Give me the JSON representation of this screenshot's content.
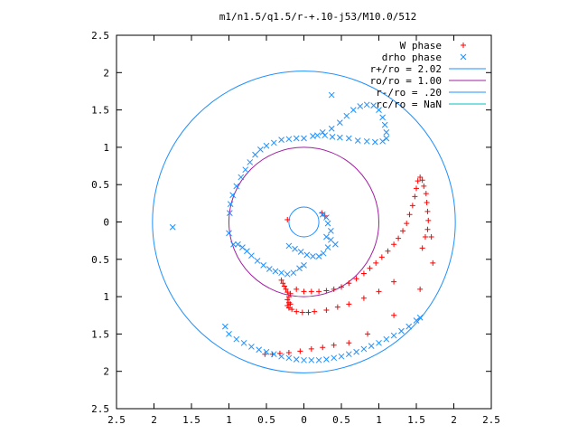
{
  "chart_data": {
    "type": "scatter",
    "title": "m1/n1.5/q1.5/r-+.10-j53/M10.0/512",
    "xlabel": "",
    "ylabel": "",
    "xlim": [
      -2.5,
      2.5
    ],
    "ylim": [
      -2.5,
      2.5
    ],
    "x_tick_labels": [
      "2.5",
      "2",
      "1.5",
      "1",
      "0.5",
      "0",
      "0.5",
      "1",
      "1.5",
      "2",
      "2.5"
    ],
    "x_tick_values": [
      -2.5,
      -2,
      -1.5,
      -1,
      -0.5,
      0,
      0.5,
      1,
      1.5,
      2,
      2.5
    ],
    "y_tick_labels": [
      "2.5",
      "2",
      "1.5",
      "1",
      "0.5",
      "0",
      "0.5",
      "1",
      "1.5",
      "2",
      "2.5"
    ],
    "y_tick_values": [
      2.5,
      2,
      1.5,
      1,
      0.5,
      0,
      -0.5,
      -1,
      -1.5,
      -2,
      -2.5
    ],
    "grid": false,
    "legend_position": "top-right",
    "series": [
      {
        "name": "W phase",
        "marker": "plus",
        "color": "#ff0000",
        "points": [
          [
            -0.22,
            0.03
          ],
          [
            0.24,
            0.12
          ],
          [
            0.28,
            0.08
          ],
          [
            -0.3,
            -0.78
          ],
          [
            -0.28,
            -0.82
          ],
          [
            -0.26,
            -0.86
          ],
          [
            -0.24,
            -0.9
          ],
          [
            -0.22,
            -0.94
          ],
          [
            -0.18,
            -0.96
          ],
          [
            -0.2,
            -1.0
          ],
          [
            -0.22,
            -1.04
          ],
          [
            -0.2,
            -1.08
          ],
          [
            -0.18,
            -1.1
          ],
          [
            -0.22,
            -1.12
          ],
          [
            -0.2,
            -1.15
          ],
          [
            -0.16,
            -1.17
          ],
          [
            -0.1,
            -1.2
          ],
          [
            -0.02,
            -1.21
          ],
          [
            0.06,
            -1.21
          ],
          [
            0.14,
            -1.2
          ],
          [
            -0.1,
            -0.9
          ],
          [
            0.0,
            -0.93
          ],
          [
            0.1,
            -0.93
          ],
          [
            0.2,
            -0.93
          ],
          [
            0.3,
            -0.92
          ],
          [
            0.4,
            -0.9
          ],
          [
            0.5,
            -0.87
          ],
          [
            0.6,
            -0.82
          ],
          [
            0.7,
            -0.76
          ],
          [
            0.8,
            -0.69
          ],
          [
            0.88,
            -0.62
          ],
          [
            0.96,
            -0.55
          ],
          [
            1.04,
            -0.47
          ],
          [
            1.12,
            -0.39
          ],
          [
            1.2,
            -0.3
          ],
          [
            1.26,
            -0.22
          ],
          [
            1.32,
            -0.12
          ],
          [
            1.37,
            -0.02
          ],
          [
            1.41,
            0.1
          ],
          [
            1.45,
            0.22
          ],
          [
            1.48,
            0.34
          ],
          [
            1.5,
            0.45
          ],
          [
            1.52,
            0.55
          ],
          [
            1.55,
            0.6
          ],
          [
            1.58,
            0.56
          ],
          [
            1.6,
            0.48
          ],
          [
            1.63,
            0.38
          ],
          [
            1.64,
            0.26
          ],
          [
            1.65,
            0.14
          ],
          [
            1.66,
            0.02
          ],
          [
            1.65,
            -0.1
          ],
          [
            1.62,
            -0.2
          ],
          [
            1.58,
            -0.35
          ],
          [
            1.7,
            -0.2
          ],
          [
            1.72,
            -0.55
          ],
          [
            1.55,
            -0.9
          ],
          [
            1.2,
            -1.25
          ],
          [
            0.85,
            -1.5
          ],
          [
            0.6,
            -1.62
          ],
          [
            0.4,
            -1.65
          ],
          [
            0.25,
            -1.68
          ],
          [
            0.1,
            -1.7
          ],
          [
            -0.05,
            -1.73
          ],
          [
            -0.2,
            -1.75
          ],
          [
            -0.32,
            -1.76
          ],
          [
            -0.42,
            -1.77
          ],
          [
            -0.52,
            -1.77
          ],
          [
            0.3,
            -1.18
          ],
          [
            0.45,
            -1.14
          ],
          [
            0.6,
            -1.1
          ],
          [
            0.8,
            -1.02
          ],
          [
            1.0,
            -0.93
          ],
          [
            1.2,
            -0.8
          ]
        ]
      },
      {
        "name": "drho phase",
        "marker": "cross",
        "color": "#1e90ff",
        "points": [
          [
            -1.75,
            -0.07
          ],
          [
            -1.05,
            -1.4
          ],
          [
            0.37,
            1.7
          ],
          [
            0.0,
            1.12
          ],
          [
            0.12,
            1.15
          ],
          [
            0.25,
            1.2
          ],
          [
            0.37,
            1.25
          ],
          [
            0.48,
            1.33
          ],
          [
            0.57,
            1.42
          ],
          [
            0.66,
            1.5
          ],
          [
            0.75,
            1.55
          ],
          [
            0.84,
            1.57
          ],
          [
            0.93,
            1.56
          ],
          [
            1.0,
            1.5
          ],
          [
            1.05,
            1.4
          ],
          [
            1.08,
            1.3
          ],
          [
            1.1,
            1.2
          ],
          [
            1.1,
            1.12
          ],
          [
            1.05,
            1.08
          ],
          [
            0.95,
            1.07
          ],
          [
            0.84,
            1.08
          ],
          [
            0.72,
            1.09
          ],
          [
            0.6,
            1.12
          ],
          [
            0.48,
            1.13
          ],
          [
            0.38,
            1.14
          ],
          [
            0.28,
            1.16
          ],
          [
            0.18,
            1.16
          ],
          [
            -0.1,
            1.12
          ],
          [
            -0.2,
            1.11
          ],
          [
            -0.3,
            1.1
          ],
          [
            -0.4,
            1.06
          ],
          [
            -0.5,
            1.02
          ],
          [
            -0.58,
            0.97
          ],
          [
            -0.65,
            0.9
          ],
          [
            -0.72,
            0.8
          ],
          [
            -0.78,
            0.7
          ],
          [
            -0.84,
            0.6
          ],
          [
            -0.9,
            0.48
          ],
          [
            -0.95,
            0.36
          ],
          [
            -0.98,
            0.24
          ],
          [
            -0.99,
            0.12
          ],
          [
            -1.0,
            -0.15
          ],
          [
            -0.94,
            -0.3
          ],
          [
            -0.88,
            -0.3
          ],
          [
            -0.82,
            -0.34
          ],
          [
            -0.76,
            -0.39
          ],
          [
            -0.7,
            -0.45
          ],
          [
            -0.62,
            -0.52
          ],
          [
            -0.54,
            -0.58
          ],
          [
            -0.46,
            -0.63
          ],
          [
            -0.38,
            -0.66
          ],
          [
            -0.3,
            -0.68
          ],
          [
            -0.22,
            -0.7
          ],
          [
            -0.14,
            -0.68
          ],
          [
            -0.06,
            -0.62
          ],
          [
            0.0,
            -0.58
          ],
          [
            -0.2,
            -0.32
          ],
          [
            -0.12,
            -0.36
          ],
          [
            -0.04,
            -0.4
          ],
          [
            0.04,
            -0.44
          ],
          [
            0.12,
            -0.46
          ],
          [
            0.2,
            -0.46
          ],
          [
            0.26,
            -0.42
          ],
          [
            0.32,
            -0.34
          ],
          [
            0.36,
            -0.24
          ],
          [
            0.36,
            -0.12
          ],
          [
            0.32,
            -0.02
          ],
          [
            0.3,
            0.06
          ],
          [
            0.25,
            0.1
          ],
          [
            0.3,
            -0.2
          ],
          [
            0.42,
            -0.3
          ],
          [
            -1.0,
            -1.5
          ],
          [
            -0.9,
            -1.57
          ],
          [
            -0.8,
            -1.62
          ],
          [
            -0.7,
            -1.67
          ],
          [
            -0.6,
            -1.71
          ],
          [
            -0.5,
            -1.74
          ],
          [
            -0.4,
            -1.77
          ],
          [
            -0.3,
            -1.8
          ],
          [
            -0.2,
            -1.82
          ],
          [
            -0.1,
            -1.84
          ],
          [
            0.0,
            -1.85
          ],
          [
            0.1,
            -1.85
          ],
          [
            0.2,
            -1.85
          ],
          [
            0.3,
            -1.84
          ],
          [
            0.4,
            -1.82
          ],
          [
            0.5,
            -1.8
          ],
          [
            0.6,
            -1.77
          ],
          [
            0.7,
            -1.74
          ],
          [
            0.8,
            -1.7
          ],
          [
            0.9,
            -1.66
          ],
          [
            1.0,
            -1.62
          ],
          [
            1.1,
            -1.57
          ],
          [
            1.2,
            -1.52
          ],
          [
            1.3,
            -1.46
          ],
          [
            1.4,
            -1.4
          ],
          [
            1.5,
            -1.32
          ],
          [
            1.55,
            -1.28
          ]
        ]
      }
    ],
    "circles": [
      {
        "name": "r+/ro = 2.02",
        "radius": 2.02,
        "color": "#1e90ff"
      },
      {
        "name": "ro/ro = 1.00",
        "radius": 1.0,
        "color": "#a020a0"
      },
      {
        "name": "r-/ro = .20",
        "radius": 0.2,
        "color": "#1e90ff"
      },
      {
        "name": "rc/ro = NaN",
        "radius": null,
        "color": "#00c0c0"
      }
    ]
  }
}
